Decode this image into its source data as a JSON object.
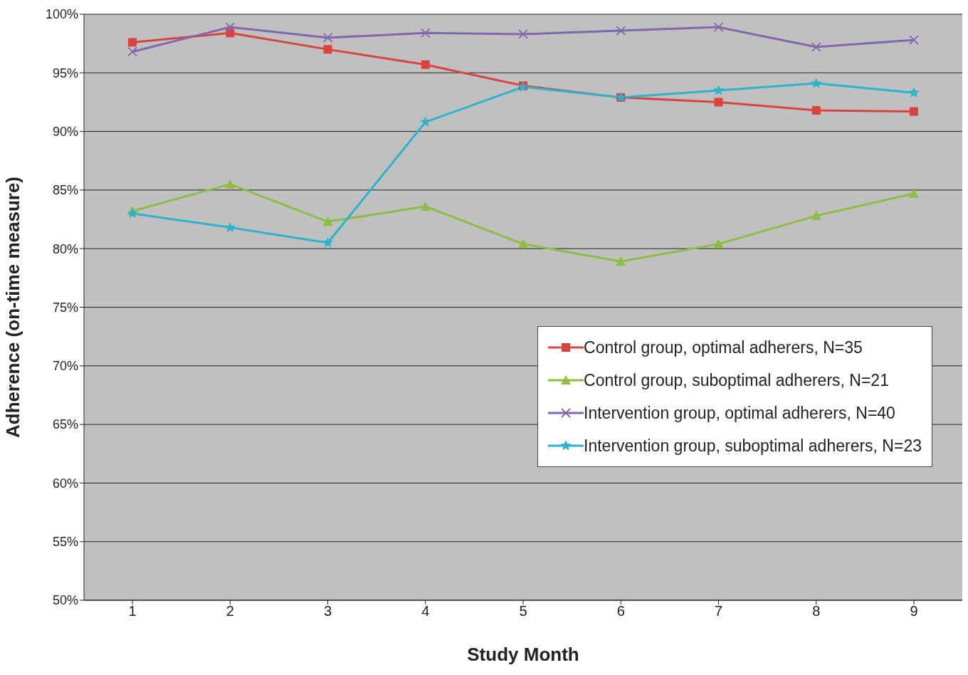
{
  "chart_data": {
    "type": "line",
    "xlabel": "Study Month",
    "ylabel": "Adherence (on-time measure)",
    "categories": [
      "1",
      "2",
      "3",
      "4",
      "5",
      "6",
      "7",
      "8",
      "9"
    ],
    "series": [
      {
        "name": "Control group, optimal adherers, N=35",
        "color": "#d9443f",
        "marker": "square",
        "values": [
          97.6,
          98.4,
          97.0,
          95.7,
          93.9,
          92.9,
          92.5,
          91.8,
          91.7
        ]
      },
      {
        "name": "Control group, suboptimal adherers, N=21",
        "color": "#8fbc45",
        "marker": "triangle",
        "values": [
          83.2,
          85.5,
          82.3,
          83.6,
          80.4,
          78.9,
          80.4,
          82.8,
          84.7
        ]
      },
      {
        "name": "Intervention group, optimal adherers, N=40",
        "color": "#8466ad",
        "marker": "cross",
        "values": [
          96.8,
          98.9,
          98.0,
          98.4,
          98.3,
          98.6,
          98.9,
          97.2,
          97.8
        ]
      },
      {
        "name": "Intervention group, suboptimal adherers, N=23",
        "color": "#2fb3cc",
        "marker": "star",
        "values": [
          83.0,
          81.8,
          80.5,
          90.8,
          93.8,
          92.9,
          93.5,
          94.1,
          93.3
        ]
      }
    ],
    "ylim": [
      50,
      100
    ],
    "yticks": [
      {
        "value": 50,
        "label": "50%"
      },
      {
        "value": 55,
        "label": "55%"
      },
      {
        "value": 60,
        "label": "60%"
      },
      {
        "value": 65,
        "label": "65%"
      },
      {
        "value": 70,
        "label": "70%"
      },
      {
        "value": 75,
        "label": "75%"
      },
      {
        "value": 80,
        "label": "80%"
      },
      {
        "value": 85,
        "label": "85%"
      },
      {
        "value": 90,
        "label": "90%"
      },
      {
        "value": 95,
        "label": "95%"
      },
      {
        "value": 100,
        "label": "100%"
      }
    ],
    "grid": "y",
    "legend": "right",
    "line_style": "solid"
  }
}
